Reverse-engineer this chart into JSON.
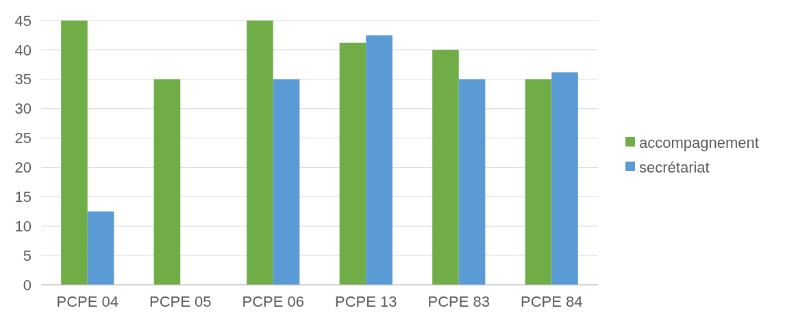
{
  "chart_data": {
    "type": "bar",
    "categories": [
      "PCPE 04",
      "PCPE 05",
      "PCPE 06",
      "PCPE 13",
      "PCPE 83",
      "PCPE 84"
    ],
    "series": [
      {
        "name": "accompagnement",
        "color": "#70ad47",
        "values": [
          45,
          35,
          45,
          41.2,
          40,
          35
        ]
      },
      {
        "name": "secrétariat",
        "color": "#5b9bd5",
        "values": [
          12.5,
          null,
          35,
          42.5,
          35,
          36.2
        ]
      }
    ],
    "ylim": [
      0,
      45
    ],
    "yticks": [
      0,
      5,
      10,
      15,
      20,
      25,
      30,
      35,
      40,
      45
    ],
    "grid": "y",
    "legend": "right"
  }
}
